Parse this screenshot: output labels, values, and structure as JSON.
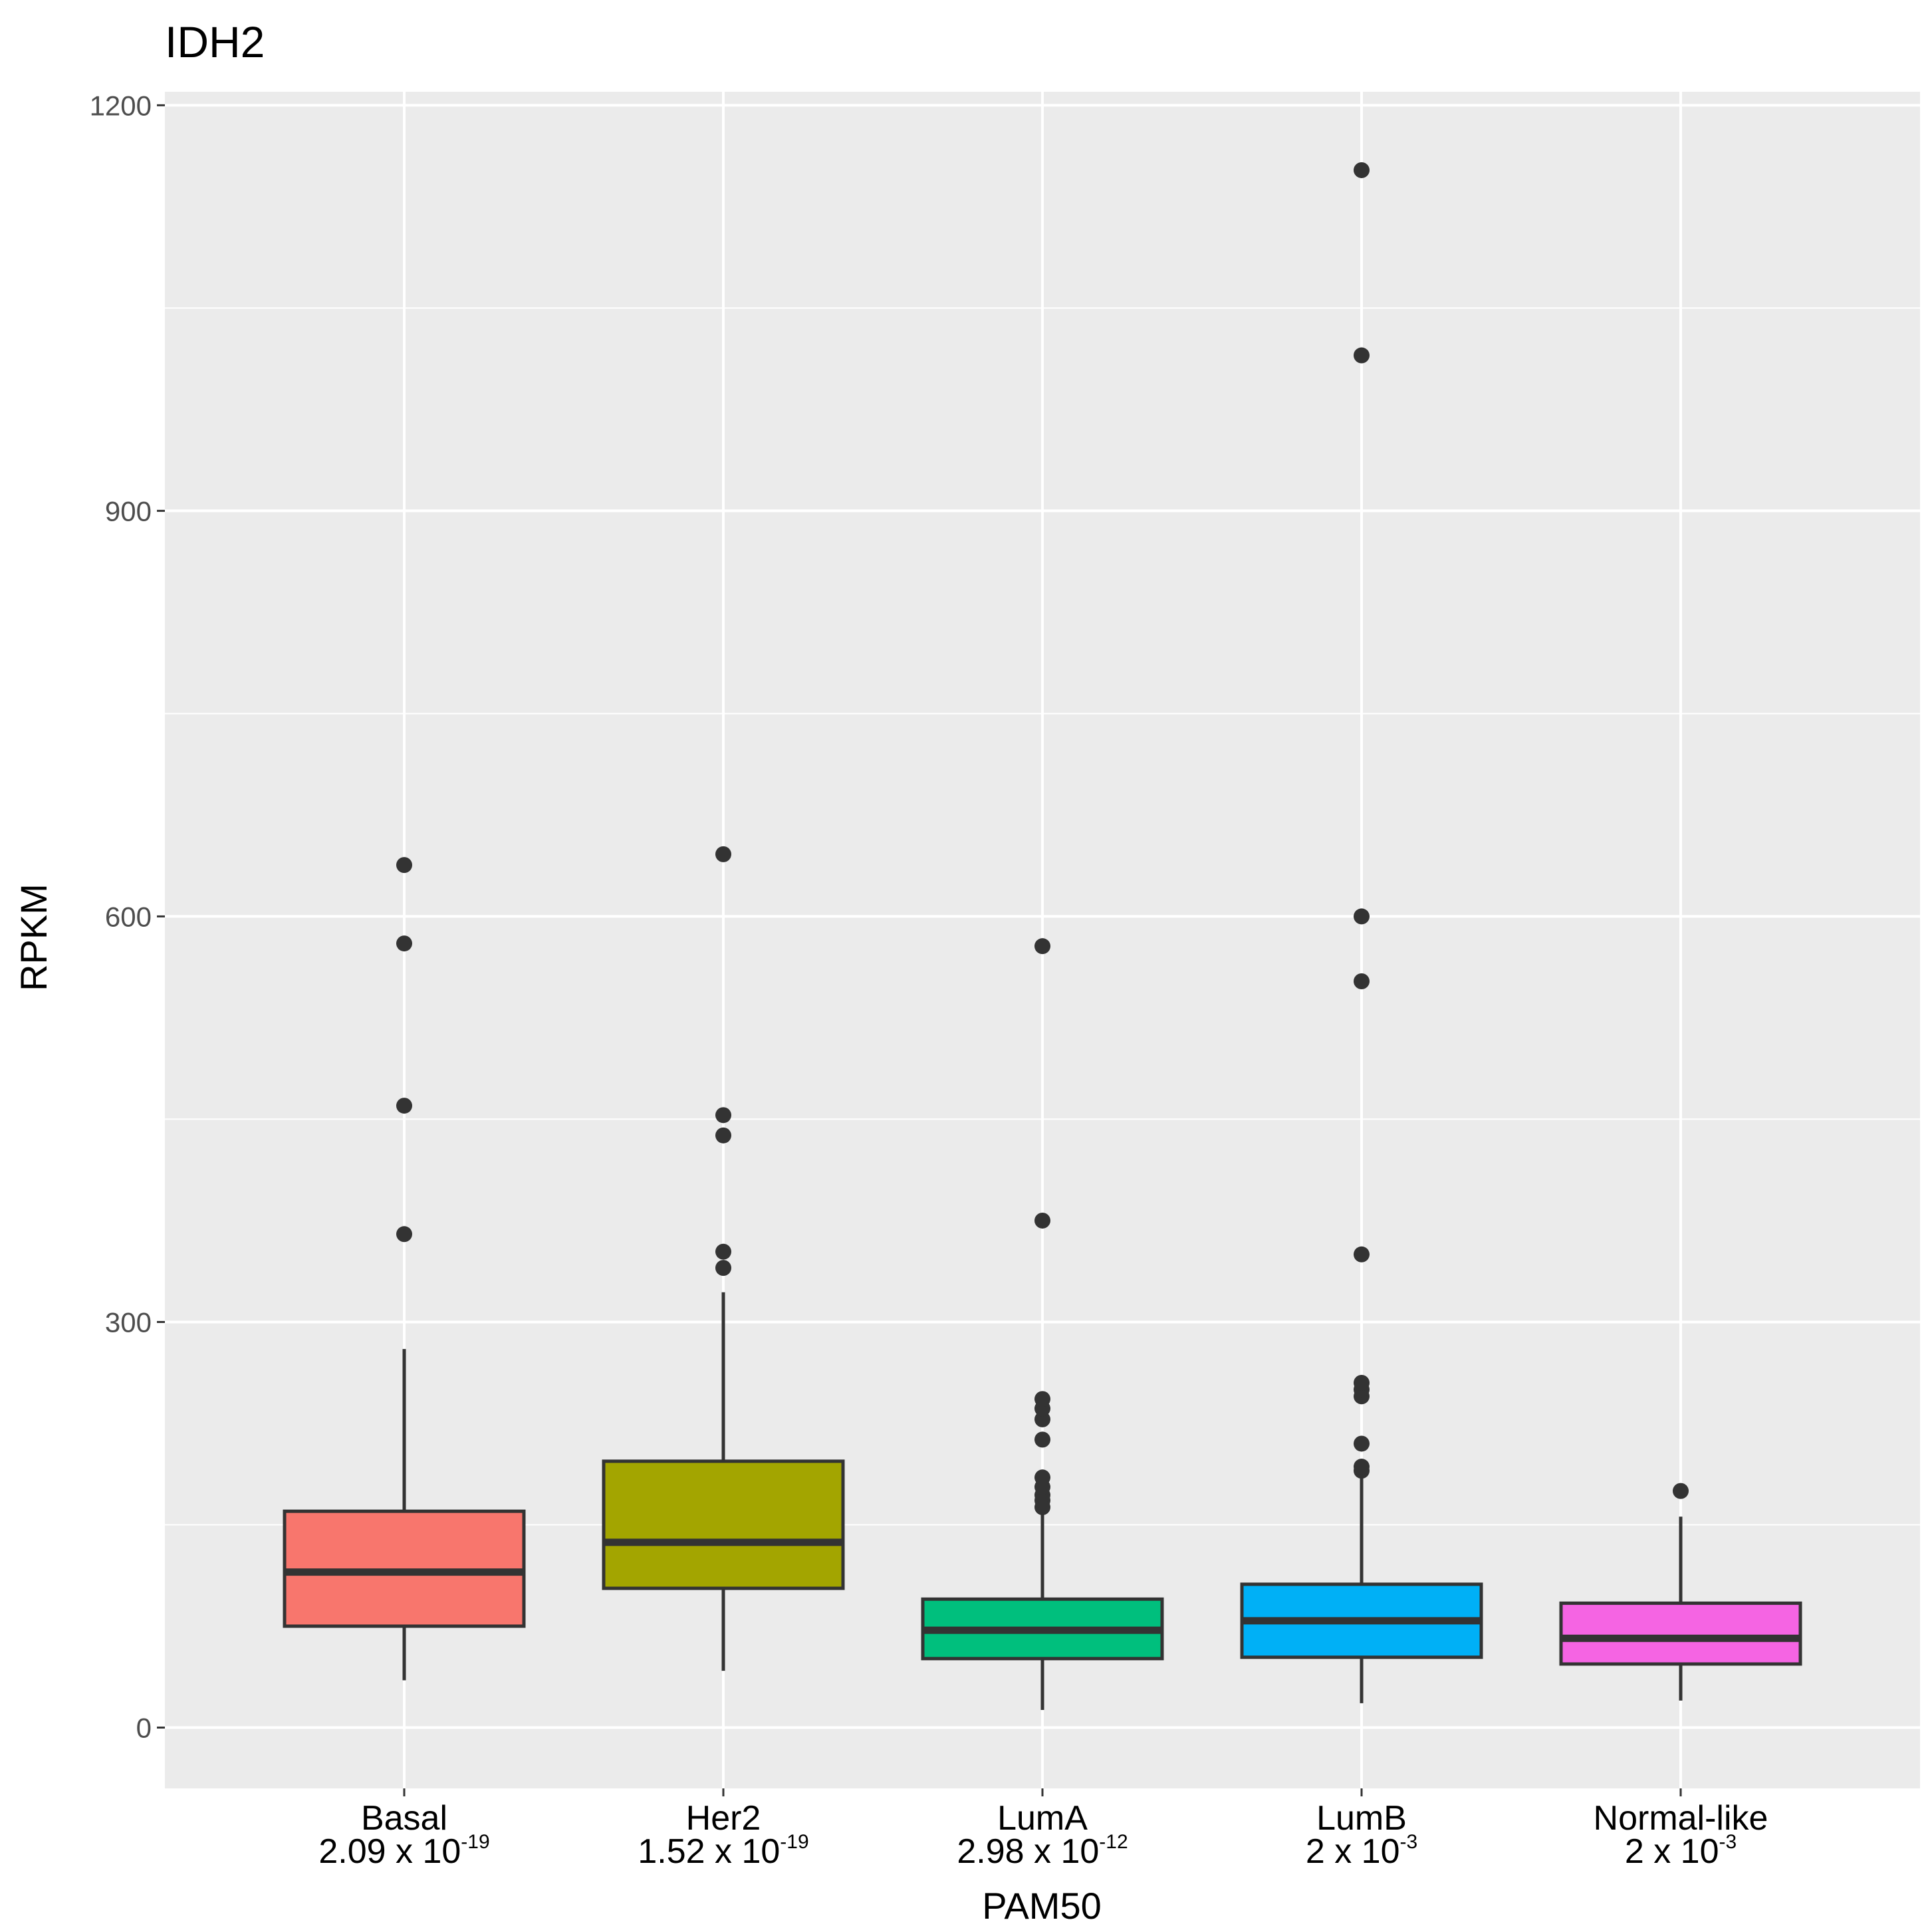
{
  "chart_data": {
    "type": "boxplot",
    "title": "IDH2",
    "xlabel": "PAM50",
    "ylabel": "RPKM",
    "ylim": [
      -45,
      1210
    ],
    "yticks": [
      0,
      300,
      600,
      900,
      1200
    ],
    "grid": true,
    "categories": [
      {
        "name": "Basal",
        "p_base": "2.09 x 10",
        "p_exp": "-19",
        "color": "#F8766D",
        "whisker_low": 35,
        "q1": 75,
        "median": 115,
        "q3": 160,
        "whisker_high": 280,
        "outliers": [
          365,
          460,
          580,
          638
        ]
      },
      {
        "name": "Her2",
        "p_base": "1.52 x 10",
        "p_exp": "-19",
        "color": "#A3A500",
        "whisker_low": 42,
        "q1": 103,
        "median": 137,
        "q3": 197,
        "whisker_high": 322,
        "outliers": [
          340,
          352,
          438,
          453,
          646
        ]
      },
      {
        "name": "LumA",
        "p_base": "2.98 x 10",
        "p_exp": "-12",
        "color": "#00BF7D",
        "whisker_low": 13,
        "q1": 51,
        "median": 72,
        "q3": 95,
        "whisker_high": 160,
        "outliers": [
          163,
          168,
          172,
          178,
          185,
          213,
          228,
          236,
          243,
          375,
          578
        ]
      },
      {
        "name": "LumB",
        "p_base": "2 x 10",
        "p_exp": "-3",
        "color": "#00B0F6",
        "whisker_low": 18,
        "q1": 52,
        "median": 79,
        "q3": 106,
        "whisker_high": 187,
        "outliers": [
          190,
          193,
          210,
          245,
          250,
          255,
          350,
          552,
          600,
          1015,
          1152
        ]
      },
      {
        "name": "Normal-like",
        "p_base": "2 x 10",
        "p_exp": "-3",
        "color": "#F564E3",
        "whisker_low": 20,
        "q1": 47,
        "median": 66,
        "q3": 92,
        "whisker_high": 156,
        "outliers": [
          175
        ]
      }
    ]
  }
}
